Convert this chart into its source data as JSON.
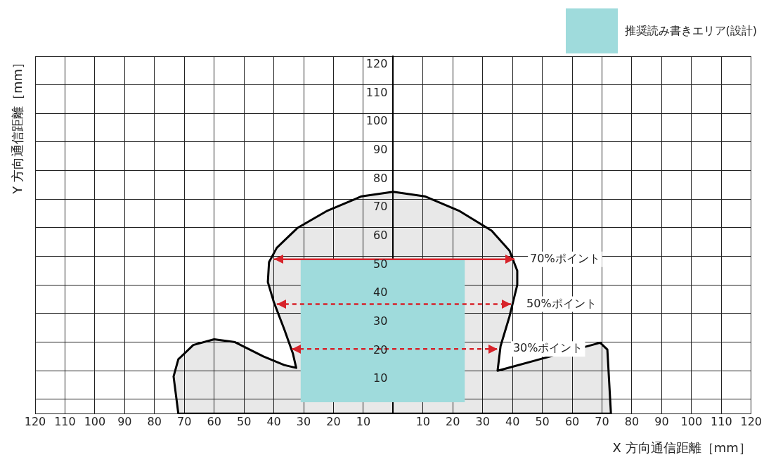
{
  "chart_data": {
    "type": "line",
    "xlabel": "X 方向通信距離［mm］",
    "ylabel": "Y 方向通信距離［mm］",
    "xlim": [
      -120,
      120
    ],
    "xticks": [
      {
        "value": -120,
        "label": "120"
      },
      {
        "value": -110,
        "label": "110"
      },
      {
        "value": -100,
        "label": "100"
      },
      {
        "value": -90,
        "label": "90"
      },
      {
        "value": -80,
        "label": "80"
      },
      {
        "value": -70,
        "label": "70"
      },
      {
        "value": -60,
        "label": "60"
      },
      {
        "value": -50,
        "label": "50"
      },
      {
        "value": -40,
        "label": "40"
      },
      {
        "value": -30,
        "label": "30"
      },
      {
        "value": -20,
        "label": "20"
      },
      {
        "value": -10,
        "label": "10"
      },
      {
        "value": 0,
        "label": null
      },
      10,
      20,
      30,
      40,
      50,
      60,
      70,
      80,
      90,
      100,
      110,
      120
    ],
    "ylim": [
      -5,
      120
    ],
    "yticks": [
      {
        "value": -5,
        "label": null
      },
      {
        "value": 0,
        "label": null
      },
      10,
      20,
      30,
      40,
      50,
      60,
      70,
      80,
      90,
      100,
      110,
      120
    ],
    "grid": true,
    "legend": "top right",
    "annotations": [
      {
        "text": "70%ポイント",
        "x": 40.7,
        "y": 49
      },
      {
        "text": "50%ポイント",
        "x": 39.5,
        "y": 33.3
      },
      {
        "text": "30%ポイント",
        "x": 35,
        "y": 17.6
      }
    ],
    "series": [
      {
        "type": "area",
        "color": "#000000",
        "x": [
          -72,
          -73.6,
          -72,
          -67,
          -60,
          -53,
          -43.5,
          -36.5,
          -32.5,
          -33.6,
          -36.5,
          -40,
          -42,
          -41.6,
          -39,
          -32,
          -22,
          -10.6,
          0,
          10.6,
          22,
          33,
          39,
          41.6,
          41.6,
          39,
          36,
          35,
          40,
          69.4,
          71.8,
          73,
          -72
        ],
        "values": [
          -5,
          8,
          14,
          19,
          21,
          20,
          15,
          12,
          11,
          16,
          24.5,
          34,
          41,
          48,
          53,
          60,
          66,
          71,
          72.6,
          71,
          66,
          59,
          52,
          45,
          40,
          29,
          18.6,
          10,
          11.4,
          19.8,
          17.4,
          -5,
          -5
        ]
      },
      {
        "type": "area",
        "name": "推奨読み書きエリア(設計)",
        "color": "#9fdbdc",
        "x": [
          -31,
          24,
          24,
          -31,
          -31
        ],
        "values": [
          -1,
          -1,
          49,
          49,
          -1
        ]
      },
      {
        "type": "line",
        "color": "#d7232a",
        "line_style": "solid",
        "x": [
          -40,
          0,
          40.7
        ],
        "values": [
          49,
          49,
          49
        ]
      },
      {
        "type": "line",
        "color": "#d7232a",
        "line_style": "dashed",
        "x": [
          -39,
          0,
          39.5
        ],
        "values": [
          33.3,
          33.3,
          33.3
        ]
      },
      {
        "type": "line",
        "color": "#d7232a",
        "line_style": "dashed",
        "x": [
          -34,
          0,
          35
        ],
        "values": [
          17.6,
          17.6,
          17.6
        ]
      }
    ]
  }
}
